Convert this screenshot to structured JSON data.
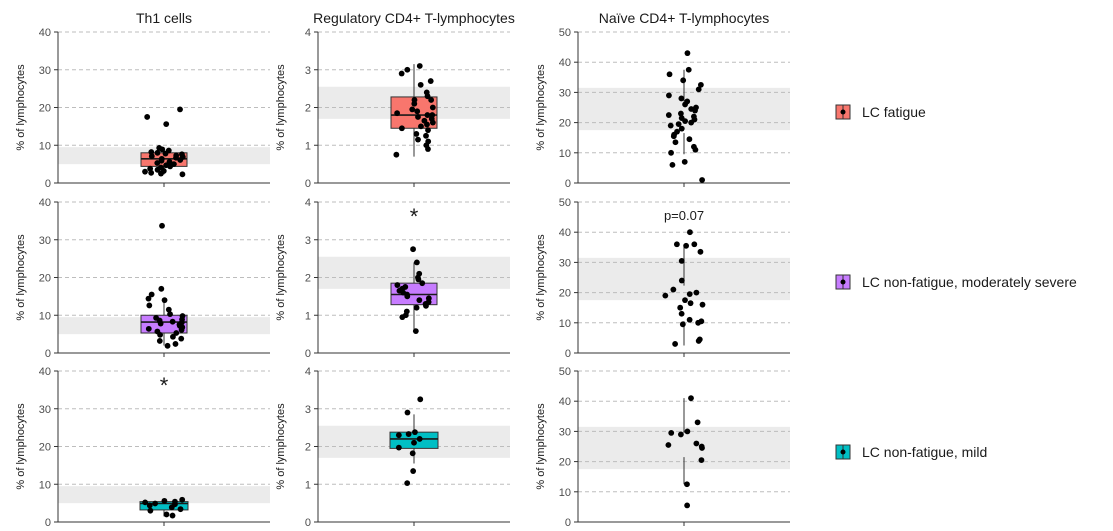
{
  "chart_data": {
    "type": "boxplot",
    "columns": [
      "Th1 cells",
      "Regulatory CD4+ T-lymphocytes",
      "Naïve CD4+ T-lymphocytes"
    ],
    "ylabel": "% of lymphocytes",
    "legend_placement": "right",
    "grid": "horizontal dashed",
    "reference_band_color": "#ebebeb",
    "groups": [
      {
        "name": "LC fatigue",
        "color": "#f8766d"
      },
      {
        "name": "LC non-fatigue, moderately severe",
        "color": "#c77cff"
      },
      {
        "name": "LC non-fatigue, mild",
        "color": "#00bfc4"
      }
    ],
    "panels": [
      [
        {
          "ylim": [
            0,
            40
          ],
          "ticks": [
            0,
            10,
            20,
            30,
            40
          ],
          "band": [
            5,
            9.5
          ],
          "box": {
            "q1": 4.4,
            "median": 6.4,
            "q3": 8,
            "lo": 2.3,
            "hi": 9.5
          },
          "points": [
            19.5,
            17.5,
            15.6,
            9.3,
            8.9,
            8.6,
            8.2,
            8.0,
            7.8,
            7.6,
            7.3,
            7.1,
            6.9,
            6.7,
            6.4,
            6.1,
            5.9,
            5.6,
            5.3,
            5.0,
            4.7,
            4.4,
            4.1,
            3.8,
            3.5,
            3.2,
            3.0,
            2.7,
            2.5,
            2.3
          ],
          "annotation": ""
        },
        {
          "ylim": [
            0,
            4
          ],
          "ticks": [
            0,
            1,
            2,
            3,
            4
          ],
          "band": [
            1.7,
            2.55
          ],
          "box": {
            "q1": 1.45,
            "median": 1.8,
            "q3": 2.28,
            "lo": 0.7,
            "hi": 3.15
          },
          "points": [
            3.1,
            3.0,
            2.9,
            2.7,
            2.6,
            2.4,
            2.3,
            2.2,
            2.2,
            2.1,
            2.0,
            1.95,
            1.9,
            1.85,
            1.8,
            1.8,
            1.75,
            1.7,
            1.65,
            1.6,
            1.55,
            1.5,
            1.45,
            1.4,
            1.3,
            1.25,
            1.15,
            1.1,
            1.0,
            0.9,
            0.75
          ],
          "annotation": ""
        },
        {
          "ylim": [
            0,
            50
          ],
          "ticks": [
            0,
            10,
            20,
            30,
            40,
            50
          ],
          "band": [
            17.5,
            31.5
          ],
          "box": {
            "q1": 16.5,
            "median": 22,
            "q3": 27,
            "lo": 9.5,
            "hi": 37.5
          },
          "points": [
            43,
            37.5,
            36,
            34,
            32.5,
            31,
            29,
            28,
            27,
            26,
            25,
            24.5,
            24,
            23,
            22.5,
            22,
            21.5,
            21,
            20.5,
            20,
            19.5,
            19,
            18,
            17,
            16,
            15.5,
            14.5,
            13.5,
            12,
            11,
            10,
            7,
            6,
            1
          ],
          "annotation": ""
        }
      ],
      [
        {
          "ylim": [
            0,
            40
          ],
          "ticks": [
            0,
            10,
            20,
            30,
            40
          ],
          "band": [
            5,
            9.5
          ],
          "box": {
            "q1": 5.3,
            "median": 8.2,
            "q3": 10,
            "lo": 2,
            "hi": 14.5
          },
          "points": [
            33.7,
            17,
            15.5,
            14.4,
            14,
            12.6,
            11.5,
            10.3,
            9.8,
            9.3,
            8.9,
            8.6,
            8.3,
            8.1,
            7.8,
            7.5,
            7.2,
            6.8,
            6.4,
            6.1,
            5.7,
            5.3,
            4.8,
            4.3,
            3.8,
            3.2,
            2.4,
            1.9
          ],
          "annotation": ""
        },
        {
          "ylim": [
            0,
            4
          ],
          "ticks": [
            0,
            1,
            2,
            3,
            4
          ],
          "band": [
            1.7,
            2.55
          ],
          "box": {
            "q1": 1.28,
            "median": 1.55,
            "q3": 1.85,
            "lo": 0.6,
            "hi": 2.4
          },
          "points": [
            2.75,
            2.4,
            2.1,
            2.0,
            1.95,
            1.85,
            1.8,
            1.75,
            1.7,
            1.65,
            1.6,
            1.55,
            1.5,
            1.45,
            1.4,
            1.35,
            1.3,
            1.25,
            1.2,
            1.1,
            1.0,
            0.95,
            0.58
          ],
          "annotation": "*"
        },
        {
          "ylim": [
            0,
            50
          ],
          "ticks": [
            0,
            10,
            20,
            30,
            40,
            50
          ],
          "band": [
            17.5,
            31.5
          ],
          "box": {
            "q1": 10.5,
            "median": 16.8,
            "q3": 22.3,
            "lo": 2.5,
            "hi": 36
          },
          "points": [
            40,
            36,
            36,
            35.5,
            33.5,
            30.5,
            24,
            21,
            20,
            19.5,
            19,
            17.5,
            16.5,
            16,
            15,
            13,
            11,
            10.5,
            10,
            9.5,
            4.5,
            4,
            3
          ],
          "annotation": "p=0.07"
        }
      ],
      [
        {
          "ylim": [
            0,
            40
          ],
          "ticks": [
            0,
            10,
            20,
            30,
            40
          ],
          "band": [
            5,
            9.5
          ],
          "box": {
            "q1": 3.2,
            "median": 4.9,
            "q3": 5.4,
            "lo": 1.5,
            "hi": 6
          },
          "points": [
            5.9,
            5.6,
            5.4,
            5.2,
            4.9,
            4.7,
            4.4,
            3.9,
            3.4,
            3.0,
            2.0,
            1.7
          ],
          "annotation": "*"
        },
        {
          "ylim": [
            0,
            4
          ],
          "ticks": [
            0,
            1,
            2,
            3,
            4
          ],
          "band": [
            1.7,
            2.55
          ],
          "box": {
            "q1": 1.95,
            "median": 2.2,
            "q3": 2.38,
            "lo": 1.55,
            "hi": 2.85
          },
          "points": [
            3.25,
            2.9,
            2.38,
            2.33,
            2.3,
            2.2,
            2.1,
            1.97,
            1.82,
            1.35,
            1.03
          ],
          "annotation": ""
        },
        {
          "ylim": [
            0,
            50
          ],
          "ticks": [
            0,
            10,
            20,
            30,
            40,
            50
          ],
          "band": [
            17.5,
            31.5
          ],
          "box": {
            "q1": 21.5,
            "median": 25.8,
            "q3": 29.5,
            "lo": 12.5,
            "hi": 41
          },
          "points": [
            41,
            33,
            30,
            29.5,
            29,
            26,
            25.5,
            25,
            24.5,
            20.5,
            12.5,
            5.5
          ],
          "annotation": ""
        }
      ]
    ]
  }
}
